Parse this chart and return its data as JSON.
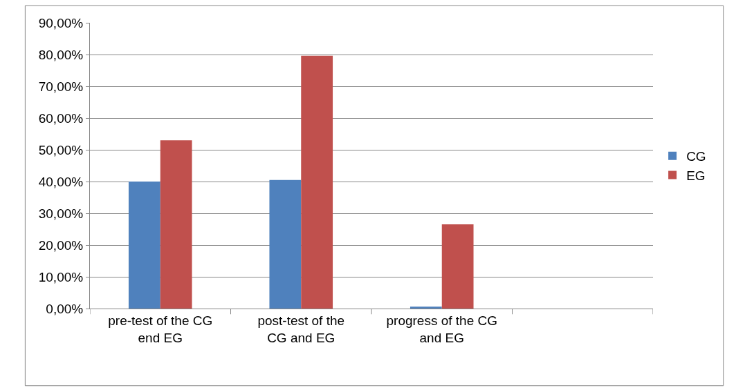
{
  "chart_data": {
    "type": "bar",
    "categories": [
      "pre-test of the CG end EG",
      "post-test of the CG and EG",
      "progress of the CG and EG",
      null
    ],
    "series": [
      {
        "name": "CG",
        "color": "#4f81bd",
        "values": [
          40.0,
          40.5,
          0.6,
          null
        ]
      },
      {
        "name": "EG",
        "color": "#c0504d",
        "values": [
          53.0,
          79.6,
          26.5,
          null
        ]
      }
    ],
    "ylim": [
      0,
      90
    ],
    "yticks": [
      {
        "value": 0,
        "label": "0,00%"
      },
      {
        "value": 10,
        "label": "10,00%"
      },
      {
        "value": 20,
        "label": "20,00%"
      },
      {
        "value": 30,
        "label": "30,00%"
      },
      {
        "value": 40,
        "label": "40,00%"
      },
      {
        "value": 50,
        "label": "50,00%"
      },
      {
        "value": 60,
        "label": "60,00%"
      },
      {
        "value": 70,
        "label": "70,00%"
      },
      {
        "value": 80,
        "label": "80,00%"
      },
      {
        "value": 90,
        "label": "90,00%"
      }
    ],
    "grid": "y",
    "legend": "right"
  }
}
